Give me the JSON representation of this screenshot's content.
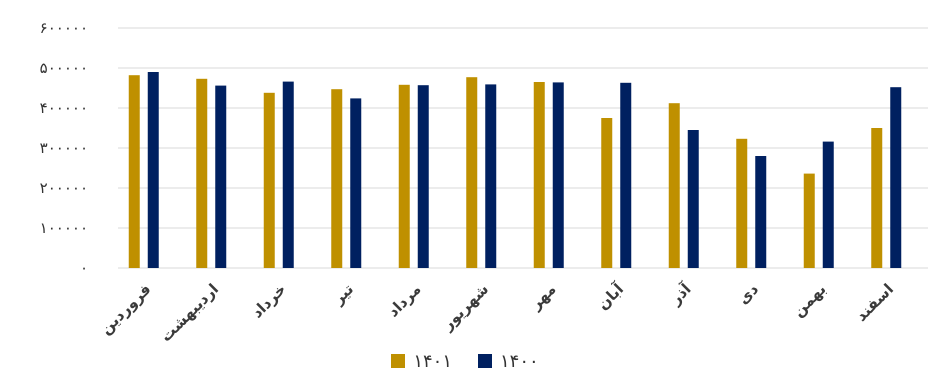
{
  "chart_data": {
    "type": "bar",
    "categories": [
      "فروردین",
      "اردیبهشت",
      "خرداد",
      "تیر",
      "مرداد",
      "شهریور",
      "مهر",
      "آبان",
      "آذر",
      "دی",
      "بهمن",
      "اسفند"
    ],
    "series": [
      {
        "name": "۱۴۰۱",
        "color": "#BF9000",
        "values": [
          482000,
          473000,
          438000,
          447000,
          458000,
          477000,
          465000,
          375000,
          412000,
          323000,
          236000,
          350000
        ]
      },
      {
        "name": "۱۴۰۰",
        "color": "#002060",
        "values": [
          490000,
          456000,
          466000,
          424000,
          457000,
          459000,
          464000,
          463000,
          345000,
          280000,
          316000,
          452000
        ]
      }
    ],
    "yticks": [
      "۰",
      "۱۰۰۰۰۰",
      "۲۰۰۰۰۰",
      "۳۰۰۰۰۰",
      "۴۰۰۰۰۰",
      "۵۰۰۰۰۰",
      "۶۰۰۰۰۰"
    ],
    "ylim": [
      0,
      600000
    ],
    "title": "",
    "xlabel": "",
    "ylabel": "",
    "grid": true,
    "legend_position": "bottom"
  }
}
